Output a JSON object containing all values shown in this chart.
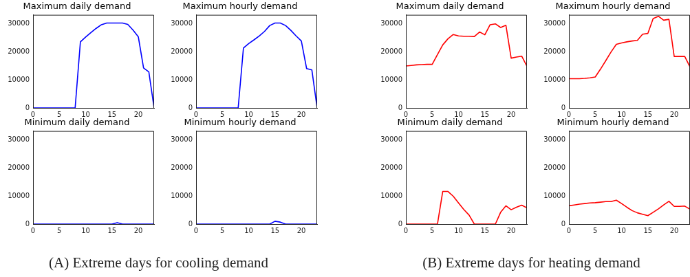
{
  "chart_data": [
    {
      "type": "line",
      "title": "Maximum daily demand",
      "x": [
        0,
        1,
        2,
        3,
        4,
        5,
        6,
        7,
        8,
        9,
        10,
        11,
        12,
        13,
        14,
        15,
        16,
        17,
        18,
        19,
        20,
        21,
        22,
        23
      ],
      "xlim": [
        0,
        23
      ],
      "ylim": [
        0,
        33100
      ],
      "xticks": [
        0,
        5,
        10,
        15,
        20
      ],
      "yticks": [
        0,
        10000,
        20000,
        30000
      ],
      "series": [
        {
          "color": "#0000ff",
          "values": [
            0,
            0,
            0,
            0,
            0,
            0,
            0,
            0,
            0,
            23500,
            25200,
            26800,
            28300,
            29600,
            30200,
            30200,
            30200,
            30200,
            29700,
            27700,
            25300,
            14200,
            12800,
            0
          ]
        }
      ]
    },
    {
      "type": "line",
      "title": "Maximum hourly demand",
      "x": [
        0,
        1,
        2,
        3,
        4,
        5,
        6,
        7,
        8,
        9,
        10,
        11,
        12,
        13,
        14,
        15,
        16,
        17,
        18,
        19,
        20,
        21,
        22,
        23
      ],
      "xlim": [
        0,
        23
      ],
      "ylim": [
        0,
        33100
      ],
      "xticks": [
        0,
        5,
        10,
        15,
        20
      ],
      "yticks": [
        0,
        10000,
        20000,
        30000
      ],
      "series": [
        {
          "color": "#0000ff",
          "values": [
            0,
            0,
            0,
            0,
            0,
            0,
            0,
            0,
            0,
            21300,
            22900,
            24200,
            25600,
            27200,
            29300,
            30200,
            30200,
            29300,
            27600,
            25600,
            23800,
            14000,
            13500,
            0
          ]
        }
      ]
    },
    {
      "type": "line",
      "title": "Maximum daily demand",
      "x": [
        0,
        1,
        2,
        3,
        4,
        5,
        6,
        7,
        8,
        9,
        10,
        11,
        12,
        13,
        14,
        15,
        16,
        17,
        18,
        19,
        20,
        21,
        22,
        23
      ],
      "xlim": [
        0,
        23
      ],
      "ylim": [
        0,
        33100
      ],
      "xticks": [
        0,
        5,
        10,
        15,
        20
      ],
      "yticks": [
        0,
        10000,
        20000,
        30000
      ],
      "series": [
        {
          "color": "#ff0000",
          "values": [
            14900,
            15100,
            15300,
            15400,
            15500,
            15500,
            19000,
            22400,
            24600,
            26100,
            25600,
            25500,
            25500,
            25400,
            27000,
            26000,
            29600,
            29900,
            28600,
            29400,
            17700,
            18100,
            18400,
            14800
          ]
        }
      ]
    },
    {
      "type": "line",
      "title": "Maximum hourly demand",
      "x": [
        0,
        1,
        2,
        3,
        4,
        5,
        6,
        7,
        8,
        9,
        10,
        11,
        12,
        13,
        14,
        15,
        16,
        17,
        18,
        19,
        20,
        21,
        22,
        23
      ],
      "xlim": [
        0,
        23
      ],
      "ylim": [
        0,
        33100
      ],
      "xticks": [
        0,
        5,
        10,
        15,
        20
      ],
      "yticks": [
        0,
        10000,
        20000,
        30000
      ],
      "series": [
        {
          "color": "#ff0000",
          "values": [
            10400,
            10400,
            10400,
            10500,
            10700,
            11000,
            13800,
            16800,
            19900,
            22600,
            23100,
            23500,
            23800,
            24000,
            26200,
            26500,
            31800,
            32600,
            31200,
            31500,
            18300,
            18300,
            18300,
            14600
          ]
        }
      ]
    },
    {
      "type": "line",
      "title": "Minimum daily demand",
      "x": [
        0,
        1,
        2,
        3,
        4,
        5,
        6,
        7,
        8,
        9,
        10,
        11,
        12,
        13,
        14,
        15,
        16,
        17,
        18,
        19,
        20,
        21,
        22,
        23
      ],
      "xlim": [
        0,
        23
      ],
      "ylim": [
        0,
        33100
      ],
      "xticks": [
        0,
        5,
        10,
        15,
        20
      ],
      "yticks": [
        0,
        10000,
        20000,
        30000
      ],
      "annotations": [
        "(A) Extreme days for cooling demand"
      ],
      "series": [
        {
          "color": "#0000ff",
          "values": [
            0,
            0,
            0,
            0,
            0,
            0,
            0,
            0,
            0,
            0,
            0,
            0,
            0,
            0,
            0,
            0,
            500,
            0,
            0,
            0,
            0,
            0,
            0,
            0
          ]
        }
      ]
    },
    {
      "type": "line",
      "title": "Minimum hourly demand",
      "x": [
        0,
        1,
        2,
        3,
        4,
        5,
        6,
        7,
        8,
        9,
        10,
        11,
        12,
        13,
        14,
        15,
        16,
        17,
        18,
        19,
        20,
        21,
        22,
        23
      ],
      "xlim": [
        0,
        23
      ],
      "ylim": [
        0,
        33100
      ],
      "xticks": [
        0,
        5,
        10,
        15,
        20
      ],
      "yticks": [
        0,
        10000,
        20000,
        30000
      ],
      "series": [
        {
          "color": "#0000ff",
          "values": [
            0,
            0,
            0,
            0,
            0,
            0,
            0,
            0,
            0,
            0,
            0,
            0,
            0,
            0,
            0,
            1000,
            700,
            0,
            0,
            0,
            0,
            0,
            0,
            0
          ]
        }
      ]
    },
    {
      "type": "line",
      "title": "Minimum daily demand",
      "x": [
        0,
        1,
        2,
        3,
        4,
        5,
        6,
        7,
        8,
        9,
        10,
        11,
        12,
        13,
        14,
        15,
        16,
        17,
        18,
        19,
        20,
        21,
        22,
        23
      ],
      "xlim": [
        0,
        23
      ],
      "ylim": [
        0,
        33100
      ],
      "xticks": [
        0,
        5,
        10,
        15,
        20
      ],
      "yticks": [
        0,
        10000,
        20000,
        30000
      ],
      "annotations": [
        "(B) Extreme days for heating demand"
      ],
      "series": [
        {
          "color": "#ff0000",
          "values": [
            0,
            0,
            0,
            0,
            0,
            0,
            0,
            11600,
            11600,
            9900,
            7500,
            5200,
            3200,
            0,
            0,
            0,
            0,
            0,
            4200,
            6500,
            5100,
            6000,
            6700,
            5800
          ]
        }
      ]
    },
    {
      "type": "line",
      "title": "Minimum hourly demand",
      "x": [
        0,
        1,
        2,
        3,
        4,
        5,
        6,
        7,
        8,
        9,
        10,
        11,
        12,
        13,
        14,
        15,
        16,
        17,
        18,
        19,
        20,
        21,
        22,
        23
      ],
      "xlim": [
        0,
        23
      ],
      "ylim": [
        0,
        33100
      ],
      "xticks": [
        0,
        5,
        10,
        15,
        20
      ],
      "yticks": [
        0,
        10000,
        20000,
        30000
      ],
      "series": [
        {
          "color": "#ff0000",
          "values": [
            6500,
            6800,
            7100,
            7300,
            7500,
            7600,
            7800,
            8000,
            8000,
            8500,
            7300,
            6000,
            4800,
            4000,
            3500,
            3000,
            4200,
            5400,
            6800,
            8100,
            6300,
            6300,
            6400,
            5300
          ]
        }
      ]
    }
  ]
}
